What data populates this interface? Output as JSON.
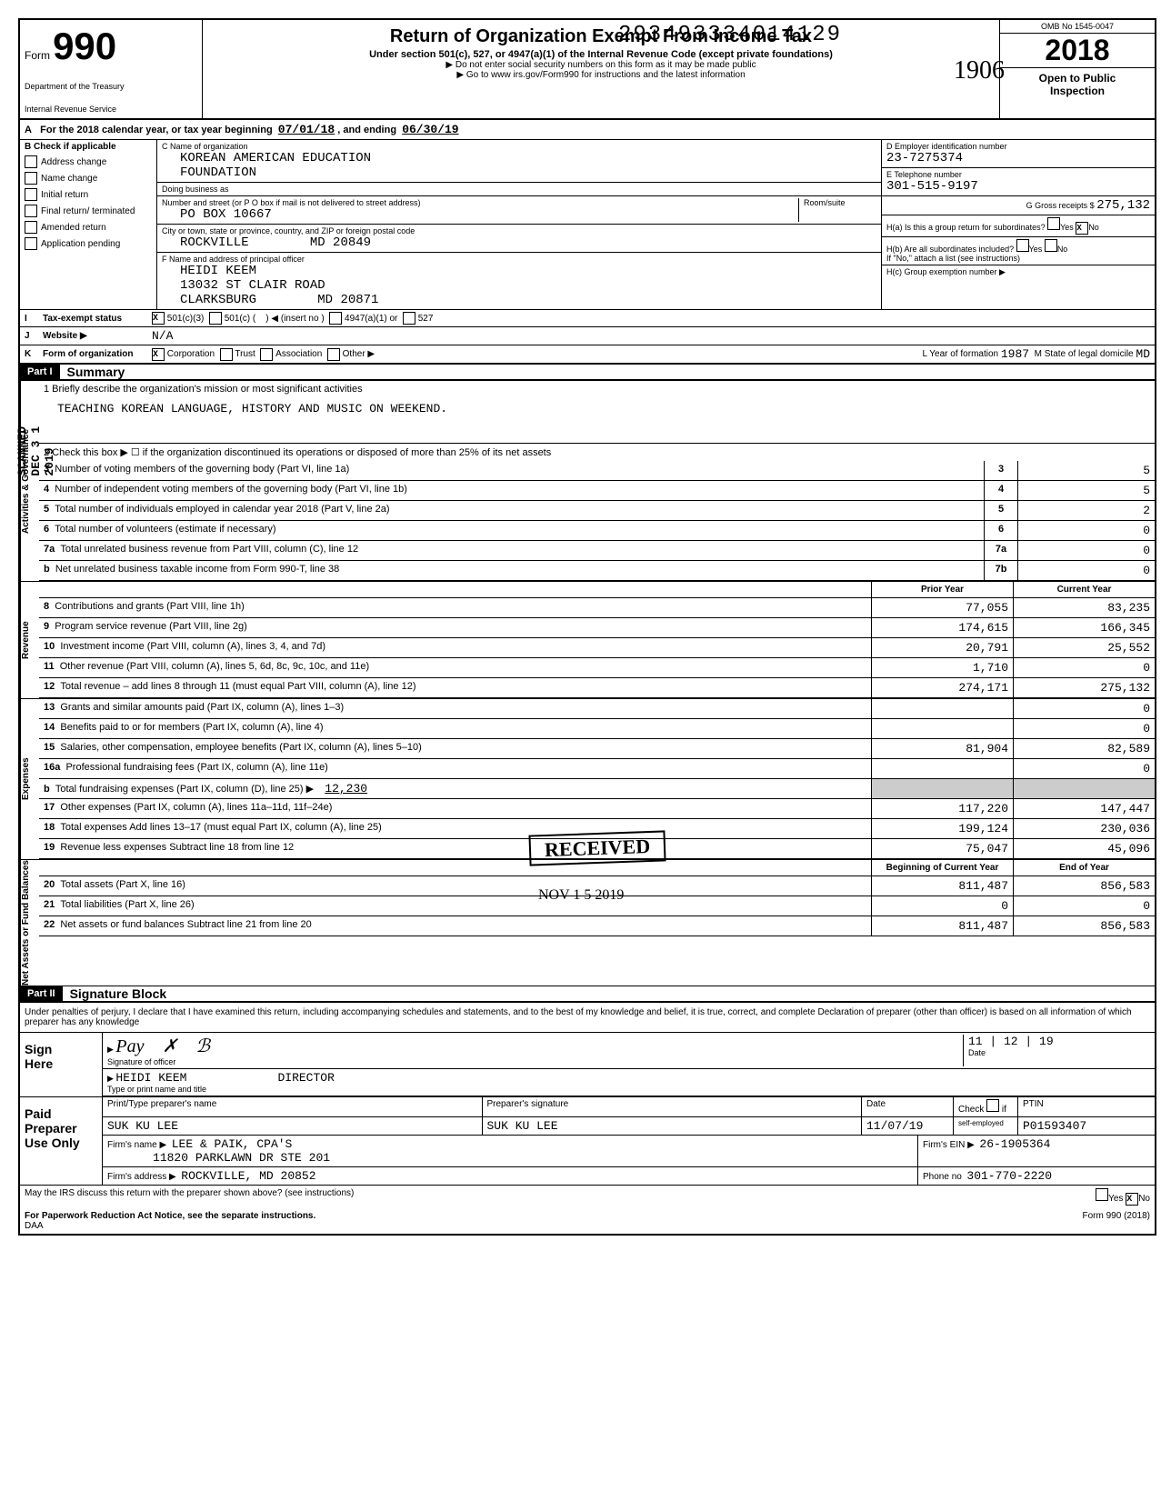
{
  "stamp_number": "293493334014129",
  "header": {
    "form_word": "Form",
    "form_number": "990",
    "dept1": "Department of the Treasury",
    "dept2": "Internal Revenue Service",
    "title": "Return of Organization Exempt From Income Tax",
    "subtitle": "Under section 501(c), 527, or 4947(a)(1) of the Internal Revenue Code (except private foundations)",
    "note1": "▶ Do not enter social security numbers on this form as it may be made public",
    "note2": "▶ Go to www irs.gov/Form990 for instructions and the latest information",
    "omb": "OMB No 1545-0047",
    "year": "2018",
    "open1": "Open to Public",
    "open2": "Inspection",
    "hand_1906": "1906"
  },
  "line_a": {
    "prefix": "A",
    "text": "For the 2018 calendar year, or tax year beginning",
    "begin": "07/01/18",
    "mid": ", and ending",
    "end": "06/30/19"
  },
  "section_b": {
    "header": "B Check if applicable",
    "items": [
      "Address change",
      "Name change",
      "Initial return",
      "Final return/ terminated",
      "Amended return",
      "Application pending"
    ]
  },
  "section_c": {
    "label": "C Name of organization",
    "org_name": "KOREAN AMERICAN EDUCATION",
    "org_name2": "FOUNDATION",
    "dba_label": "Doing business as",
    "addr_label": "Number and street (or P O box if mail is not delivered to street address)",
    "room_label": "Room/suite",
    "addr": "PO BOX 10667",
    "city_label": "City or town, state or province, country, and ZIP or foreign postal code",
    "city": "ROCKVILLE",
    "state_zip": "MD  20849",
    "officer_label": "F Name and address of principal officer",
    "officer_name": "HEIDI KEEM",
    "officer_addr": "13032 ST CLAIR ROAD",
    "officer_city": "CLARKSBURG",
    "officer_state_zip": "MD  20871"
  },
  "section_d": {
    "label": "D Employer identification number",
    "ein": "23-7275374",
    "tel_label": "E Telephone number",
    "tel": "301-515-9197",
    "gross_label": "G Gross receipts $",
    "gross": "275,132",
    "ha_label": "H(a) Is this a group return for subordinates?",
    "ha_yes": "Yes",
    "ha_no": "No",
    "ha_x": "X",
    "hb_label": "H(b) Are all subordinates included?",
    "hb_note": "If \"No,\" attach a list (see instructions)",
    "hc_label": "H(c) Group exemption number ▶"
  },
  "row_i": {
    "letter": "I",
    "label": "Tax-exempt status",
    "x": "X",
    "opt1": "501(c)(3)",
    "opt2": "501(c)",
    "insert": "◀ (insert no )",
    "opt3": "4947(a)(1) or",
    "opt4": "527"
  },
  "row_j": {
    "letter": "J",
    "label": "Website ▶",
    "value": "N/A"
  },
  "row_k": {
    "letter": "K",
    "label": "Form of organization",
    "x": "X",
    "opt1": "Corporation",
    "opt2": "Trust",
    "opt3": "Association",
    "opt4": "Other ▶",
    "year_label": "L  Year of formation",
    "year": "1987",
    "state_label": "M  State of legal domicile",
    "state": "MD"
  },
  "part1": {
    "header": "Part I",
    "title": "Summary"
  },
  "summary": {
    "line1_label": "1  Briefly describe the organization's mission or most significant activities",
    "mission": "TEACHING KOREAN LANGUAGE, HISTORY AND MUSIC ON WEEKEND.",
    "line2": "2  Check this box ▶ ☐  if the organization discontinued its operations or disposed of more than 25% of its net assets",
    "sections": {
      "governance": "Activities & Governance",
      "revenue": "Revenue",
      "expenses": "Expenses",
      "netassets": "Net Assets or Fund Balances"
    },
    "gov_lines": [
      {
        "n": "3",
        "desc": "Number of voting members of the governing body (Part VI, line 1a)",
        "ln": "3",
        "val": "5"
      },
      {
        "n": "4",
        "desc": "Number of independent voting members of the governing body (Part VI, line 1b)",
        "ln": "4",
        "val": "5"
      },
      {
        "n": "5",
        "desc": "Total number of individuals employed in calendar year 2018 (Part V, line 2a)",
        "ln": "5",
        "val": "2"
      },
      {
        "n": "6",
        "desc": "Total number of volunteers (estimate if necessary)",
        "ln": "6",
        "val": "0"
      },
      {
        "n": "7a",
        "desc": "Total unrelated business revenue from Part VIII, column (C), line 12",
        "ln": "7a",
        "val": "0"
      },
      {
        "n": "b",
        "desc": "Net unrelated business taxable income from Form 990-T, line 38",
        "ln": "7b",
        "val": "0"
      }
    ],
    "col_headers": {
      "prior": "Prior Year",
      "current": "Current Year"
    },
    "rev_lines": [
      {
        "n": "8",
        "desc": "Contributions and grants (Part VIII, line 1h)",
        "prior": "77,055",
        "current": "83,235"
      },
      {
        "n": "9",
        "desc": "Program service revenue (Part VIII, line 2g)",
        "prior": "174,615",
        "current": "166,345"
      },
      {
        "n": "10",
        "desc": "Investment income (Part VIII, column (A), lines 3, 4, and 7d)",
        "prior": "20,791",
        "current": "25,552"
      },
      {
        "n": "11",
        "desc": "Other revenue (Part VIII, column (A), lines 5, 6d, 8c, 9c, 10c, and 11e)",
        "prior": "1,710",
        "current": "0"
      },
      {
        "n": "12",
        "desc": "Total revenue – add lines 8 through 11 (must equal Part VIII, column (A), line 12)",
        "prior": "274,171",
        "current": "275,132"
      }
    ],
    "exp_lines": [
      {
        "n": "13",
        "desc": "Grants and similar amounts paid (Part IX, column (A), lines 1–3)",
        "prior": "",
        "current": "0"
      },
      {
        "n": "14",
        "desc": "Benefits paid to or for members (Part IX, column (A), line 4)",
        "prior": "",
        "current": "0"
      },
      {
        "n": "15",
        "desc": "Salaries, other compensation, employee benefits (Part IX, column (A), lines 5–10)",
        "prior": "81,904",
        "current": "82,589"
      },
      {
        "n": "16a",
        "desc": "Professional fundraising fees (Part IX, column (A), line 11e)",
        "prior": "",
        "current": "0"
      },
      {
        "n": "b",
        "desc": "Total fundraising expenses (Part IX, column (D), line 25) ▶",
        "inline": "12,230",
        "prior": "",
        "current": ""
      },
      {
        "n": "17",
        "desc": "Other expenses (Part IX, column (A), lines 11a–11d, 11f–24e)",
        "prior": "117,220",
        "current": "147,447"
      },
      {
        "n": "18",
        "desc": "Total expenses  Add lines 13–17 (must equal Part IX, column (A), line 25)",
        "prior": "199,124",
        "current": "230,036"
      },
      {
        "n": "19",
        "desc": "Revenue less expenses  Subtract line 18 from line 12",
        "prior": "75,047",
        "current": "45,096"
      }
    ],
    "net_headers": {
      "prior": "Beginning of Current Year",
      "current": "End of Year"
    },
    "net_lines": [
      {
        "n": "20",
        "desc": "Total assets (Part X, line 16)",
        "prior": "811,487",
        "current": "856,583"
      },
      {
        "n": "21",
        "desc": "Total liabilities (Part X, line 26)",
        "prior": "0",
        "current": "0"
      },
      {
        "n": "22",
        "desc": "Net assets or fund balances  Subtract line 21 from line 20",
        "prior": "811,487",
        "current": "856,583"
      }
    ]
  },
  "received": {
    "text": "RECEIVED",
    "date": "NOV 1 5 2019"
  },
  "part2": {
    "header": "Part II",
    "title": "Signature Block",
    "declaration": "Under penalties of perjury, I declare that I have examined this return, including accompanying schedules and statements, and to the best of my knowledge and belief, it is true, correct, and complete  Declaration of preparer (other than officer) is based on all information of which preparer has any knowledge"
  },
  "sign": {
    "label1": "Sign",
    "label2": "Here",
    "sig_label": "Signature of officer",
    "date_label": "Date",
    "date_value": "11 | 12 | 19",
    "name": "HEIDI KEEM",
    "title": "DIRECTOR",
    "name_label": "Type or print name and title"
  },
  "preparer": {
    "label1": "Paid",
    "label2": "Preparer",
    "label3": "Use Only",
    "h1": "Print/Type preparer's name",
    "h2": "Preparer's signature",
    "h3": "Date",
    "h4": "Check",
    "h5": "if",
    "h6": "PTIN",
    "name": "SUK KU LEE",
    "sig": "SUK KU LEE",
    "date": "11/07/19",
    "self_emp": "self-employed",
    "ptin": "P01593407",
    "firm_label": "Firm's name    ▶",
    "firm_name": "LEE & PAIK, CPA'S",
    "firm_addr2": "11820   PARKLAWN DR STE 201",
    "ein_label": "Firm's EIN ▶",
    "ein": "26-1905364",
    "addr_label": "Firm's address  ▶",
    "addr": "ROCKVILLE, MD   20852",
    "phone_label": "Phone no",
    "phone": "301-770-2220"
  },
  "footer": {
    "discuss": "May the IRS discuss this return with the preparer shown above? (see instructions)",
    "yes": "Yes",
    "no": "No",
    "x": "X",
    "paperwork": "For Paperwork Reduction Act Notice, see the separate instructions.",
    "daa": "DAA",
    "form": "Form 990 (2018)"
  },
  "side_scanned": "SCANNED DEC 3 1 2019"
}
